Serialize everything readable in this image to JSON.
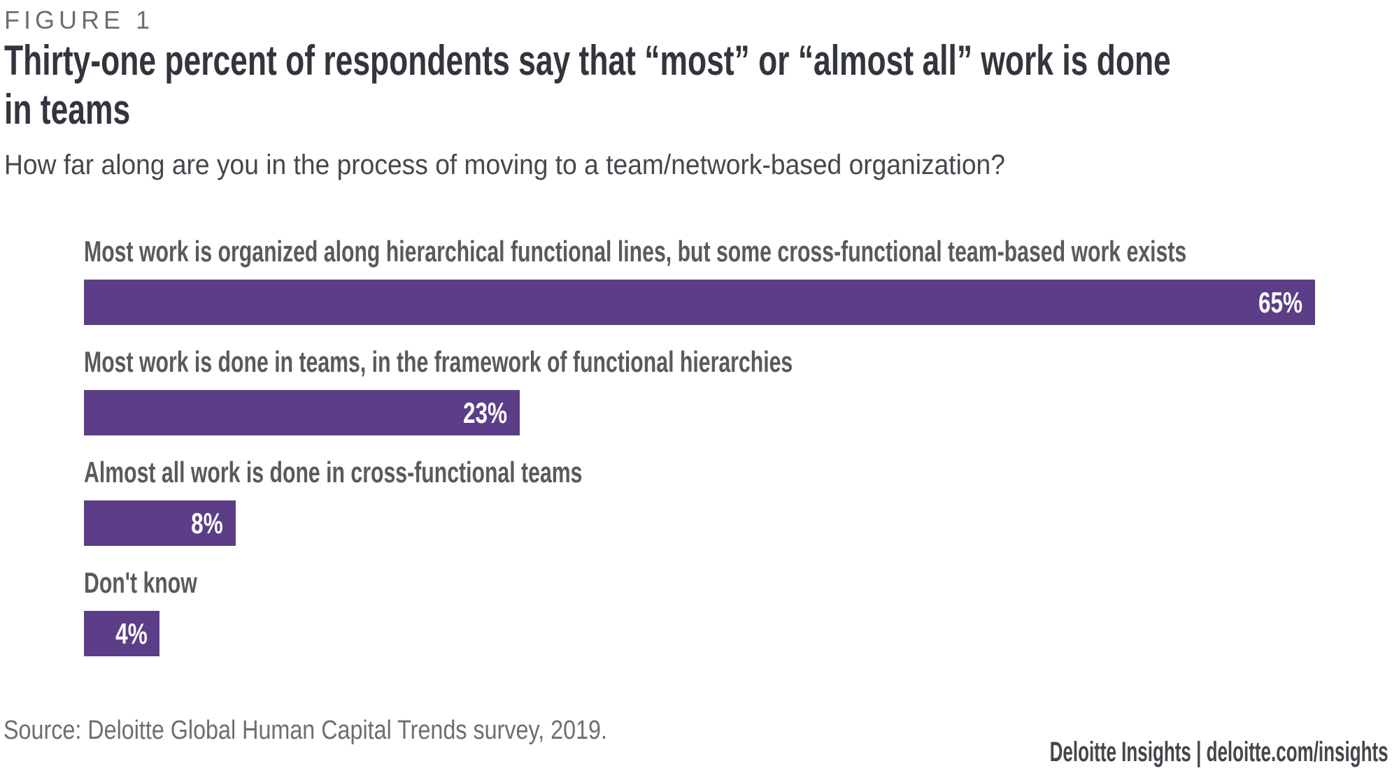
{
  "figure_label": "FIGURE 1",
  "title": "Thirty-one percent of respondents say that “most” or “almost all” work is done\nin teams",
  "subtitle": "How far along are you in the process of moving to a team/network-based organization?",
  "chart_data": {
    "type": "bar",
    "orientation": "horizontal",
    "categories": [
      "Most work is organized along hierarchical functional lines, but some cross-functional team-based work exists",
      "Most work is done in teams, in the framework of functional hierarchies",
      "Almost all work is done in cross-functional teams",
      "Don't know"
    ],
    "values": [
      65,
      23,
      8,
      4
    ],
    "value_labels": [
      "65%",
      "23%",
      "8%",
      "4%"
    ],
    "unit": "percent",
    "xlim": [
      0,
      65
    ],
    "grid": false,
    "legend": false,
    "bar_color": "#5c3d87",
    "value_label_color": "#ffffff",
    "category_label_color": "#595a5e"
  },
  "footer": {
    "source": "Source: Deloitte Global Human Capital Trends survey, 2019.",
    "attribution": "Deloitte Insights | deloitte.com/insights"
  },
  "colors": {
    "background": "#ffffff",
    "bar_purple": "#5c3d87",
    "title_text": "#32353c",
    "subtitle_text": "#45474d",
    "figure_label_text": "#6b6e71",
    "source_text": "#6b6e73",
    "attribution_text": "#43464c"
  }
}
